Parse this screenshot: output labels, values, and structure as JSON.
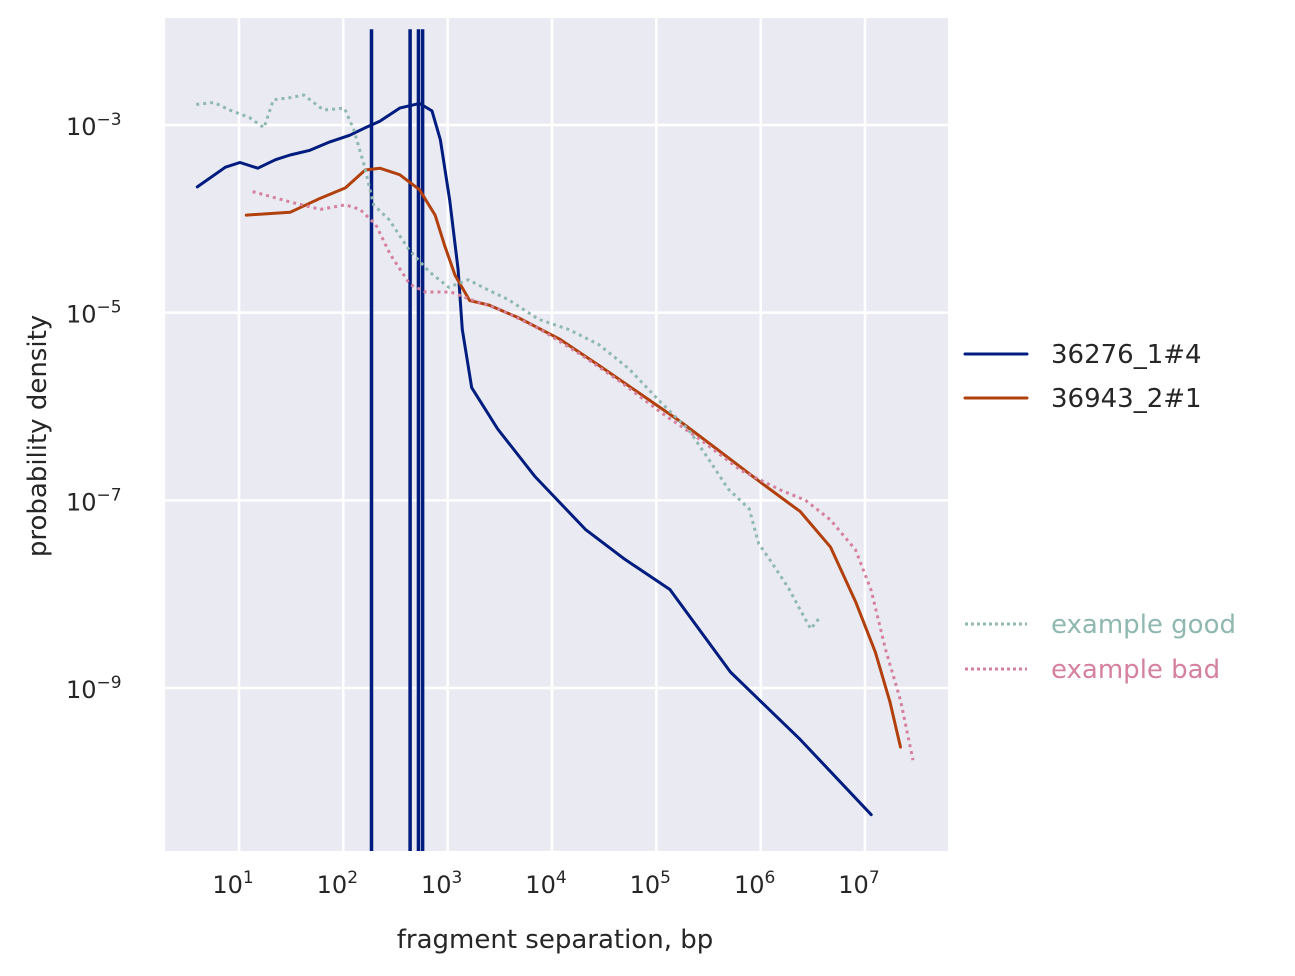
{
  "chart_data": {
    "type": "line",
    "title": "",
    "xlabel": "fragment separation, bp",
    "ylabel": "probability density",
    "xscale": "log",
    "yscale": "log",
    "xlim_log10": [
      0.3,
      7.85
    ],
    "ylim_log10": [
      -10.8,
      -2.1
    ],
    "grid": true,
    "background": "#eaeaf2",
    "legend_placement": "center-right-outside",
    "x_ticks": [
      {
        "exp": "1",
        "value": 10
      },
      {
        "exp": "2",
        "value": 100
      },
      {
        "exp": "3",
        "value": 1000
      },
      {
        "exp": "4",
        "value": 10000
      },
      {
        "exp": "5",
        "value": 100000
      },
      {
        "exp": "6",
        "value": 1000000
      },
      {
        "exp": "7",
        "value": 10000000
      }
    ],
    "y_ticks": [
      {
        "exp": "−3",
        "value": 0.001
      },
      {
        "exp": "−5",
        "value": 1e-05
      },
      {
        "exp": "−7",
        "value": 1e-07
      },
      {
        "exp": "−9",
        "value": 1e-09
      }
    ],
    "series": [
      {
        "name": "36276_1#4",
        "color": "#001c7f",
        "style": "solid",
        "legend_group": "samples",
        "log10_x": [
          0.6,
          0.87,
          1.01,
          1.18,
          1.35,
          1.49,
          1.68,
          1.87,
          2.06,
          2.21,
          2.35,
          2.54,
          2.73,
          2.85,
          2.93,
          3.02,
          3.1,
          3.14,
          3.23,
          3.48,
          3.84,
          4.32,
          4.7,
          5.13,
          5.71,
          6.38,
          7.06
        ],
        "log10_y": [
          -3.66,
          -3.45,
          -3.4,
          -3.46,
          -3.37,
          -3.32,
          -3.27,
          -3.18,
          -3.11,
          -3.03,
          -2.96,
          -2.82,
          -2.77,
          -2.85,
          -3.16,
          -3.8,
          -4.54,
          -5.18,
          -5.8,
          -6.24,
          -6.75,
          -7.31,
          -7.63,
          -7.95,
          -8.83,
          -9.55,
          -10.35
        ],
        "spikes_log10_x": [
          2.27,
          2.64,
          2.72,
          2.76
        ],
        "spike_top_log10_y": -1.98
      },
      {
        "name": "36943_2#1",
        "color": "#b1400d",
        "style": "solid",
        "legend_group": "samples",
        "log10_x": [
          1.07,
          1.49,
          1.78,
          2.02,
          2.21,
          2.35,
          2.54,
          2.73,
          2.88,
          2.97,
          3.07,
          3.21,
          3.4,
          3.69,
          4.07,
          4.46,
          4.84,
          5.23,
          5.61,
          5.99,
          6.38,
          6.67,
          6.91,
          7.1,
          7.24,
          7.34
        ],
        "log10_y": [
          -3.96,
          -3.93,
          -3.78,
          -3.67,
          -3.48,
          -3.46,
          -3.53,
          -3.69,
          -3.96,
          -4.28,
          -4.6,
          -4.87,
          -4.92,
          -5.06,
          -5.28,
          -5.57,
          -5.86,
          -6.16,
          -6.48,
          -6.8,
          -7.12,
          -7.5,
          -8.08,
          -8.62,
          -9.15,
          -9.63
        ]
      },
      {
        "name": "example good",
        "color": "#8fb8b0",
        "style": "dotted",
        "legend_group": "examples",
        "log10_x": [
          0.59,
          0.76,
          0.91,
          1.1,
          1.24,
          1.33,
          1.48,
          1.62,
          1.81,
          2.01,
          2.1,
          2.2,
          2.29,
          2.44,
          2.63,
          2.82,
          3.01,
          3.2,
          3.39,
          3.58,
          3.87,
          4.16,
          4.45,
          4.74,
          5.02,
          5.31,
          5.5,
          5.69,
          5.89,
          5.98,
          6.08,
          6.27,
          6.37,
          6.48,
          6.56
        ],
        "log10_y": [
          -2.78,
          -2.76,
          -2.84,
          -2.92,
          -3.03,
          -2.73,
          -2.71,
          -2.68,
          -2.84,
          -2.82,
          -3.05,
          -3.43,
          -3.85,
          -4.01,
          -4.33,
          -4.56,
          -4.73,
          -4.65,
          -4.76,
          -4.86,
          -5.07,
          -5.18,
          -5.34,
          -5.6,
          -5.93,
          -6.25,
          -6.56,
          -6.88,
          -7.09,
          -7.46,
          -7.62,
          -7.94,
          -8.15,
          -8.37,
          -8.26
        ]
      },
      {
        "name": "example bad",
        "color": "#d5819d",
        "style": "dotted",
        "legend_group": "examples",
        "log10_x": [
          1.13,
          1.49,
          1.78,
          2.02,
          2.16,
          2.31,
          2.45,
          2.64,
          2.79,
          3.03,
          3.22,
          3.51,
          3.89,
          4.28,
          4.66,
          5.04,
          5.43,
          5.81,
          6.19,
          6.43,
          6.67,
          6.91,
          7.06,
          7.2,
          7.34,
          7.46
        ],
        "log10_y": [
          -3.71,
          -3.82,
          -3.9,
          -3.85,
          -3.9,
          -4.06,
          -4.38,
          -4.7,
          -4.78,
          -4.78,
          -4.86,
          -4.97,
          -5.18,
          -5.45,
          -5.74,
          -6.06,
          -6.36,
          -6.68,
          -6.89,
          -7.0,
          -7.21,
          -7.53,
          -7.96,
          -8.6,
          -9.13,
          -9.77
        ]
      }
    ]
  }
}
